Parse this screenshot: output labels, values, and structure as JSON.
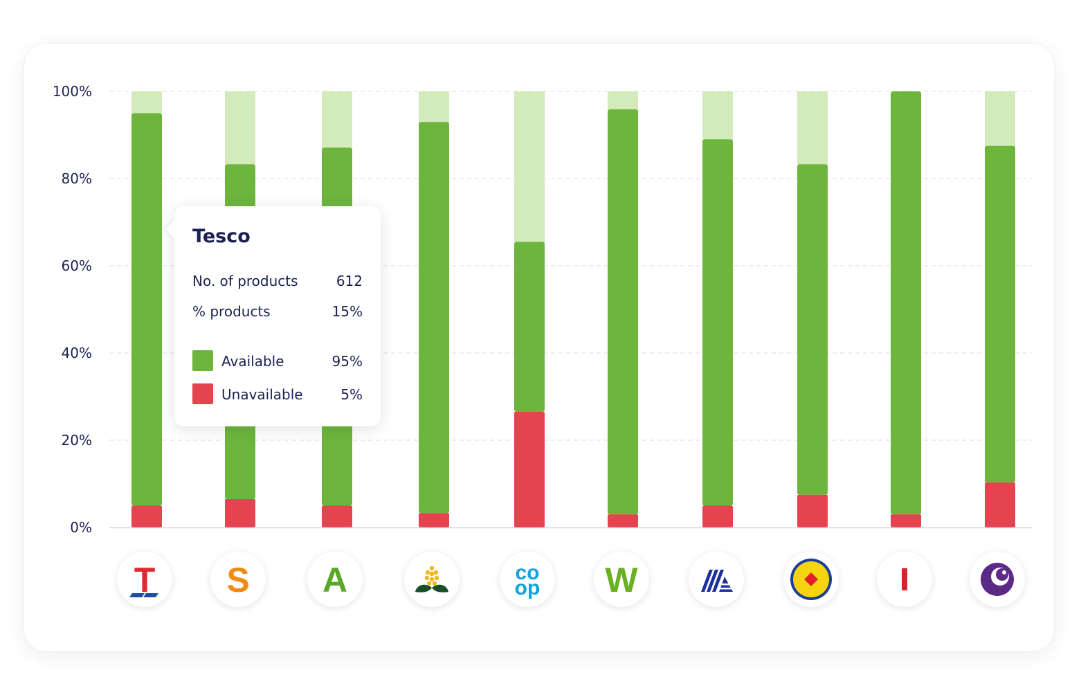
{
  "chart_data": {
    "type": "bar",
    "stacked": true,
    "yticks": [
      "0%",
      "20%",
      "40%",
      "60%",
      "80%",
      "100%"
    ],
    "ylim": [
      0,
      100
    ],
    "grid": true,
    "categories": [
      "Tesco",
      "Sainsbury's",
      "Asda",
      "Morrisons",
      "Co-op",
      "Waitrose",
      "Aldi",
      "Lidl",
      "Iceland",
      "Ocado"
    ],
    "series": [
      {
        "name": "Unavailable",
        "color": "#e4444f",
        "values": [
          5,
          6.5,
          5,
          3.3,
          26.5,
          3,
          5,
          7.5,
          3,
          10.3
        ]
      },
      {
        "name": "Available",
        "color": "#6db53c",
        "values": [
          95,
          83.3,
          87.1,
          93,
          65.5,
          95.9,
          89,
          83.3,
          100,
          87.5
        ]
      }
    ],
    "remainder_color": "#d3eabb"
  },
  "tooltip": {
    "title": "Tesco",
    "products_label": "No. of products",
    "products_value": "612",
    "percent_label": "% products",
    "percent_value": "15%",
    "available_label": "Available",
    "available_value": "95%",
    "unavailable_label": "Unavailable",
    "unavailable_value": "5%"
  },
  "logos": [
    {
      "name": "tesco-logo-icon",
      "glyph": "T",
      "color": "#e12a2f"
    },
    {
      "name": "sainsburys-logo-icon",
      "glyph": "S",
      "color": "#f28a13"
    },
    {
      "name": "asda-logo-icon",
      "glyph": "A",
      "color": "#5aa829"
    },
    {
      "name": "morrisons-logo-icon",
      "glyph": "",
      "color": "#f2b71f"
    },
    {
      "name": "coop-logo-icon",
      "glyph": "",
      "color": "#10a3de"
    },
    {
      "name": "waitrose-logo-icon",
      "glyph": "W",
      "color": "#6ab023"
    },
    {
      "name": "aldi-logo-icon",
      "glyph": "",
      "color": "#1c2f9e"
    },
    {
      "name": "lidl-logo-icon",
      "glyph": "",
      "color": "#f6d411"
    },
    {
      "name": "iceland-logo-icon",
      "glyph": "",
      "color": "#d6242b"
    },
    {
      "name": "ocado-logo-icon",
      "glyph": "",
      "color": "#5b2a86"
    }
  ]
}
